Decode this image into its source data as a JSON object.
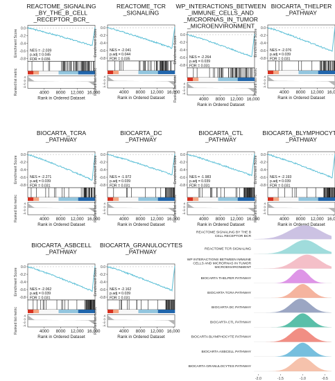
{
  "figure": {
    "gsea_axes": {
      "ylabel_top": "Enrichment Score",
      "ylabel_bottom": "Ranked list metric",
      "xlabel": "Rank in Ordered Dataset",
      "xticks": [
        "4000",
        "8000",
        "12,000",
        "16,000"
      ],
      "yticks_main": [
        "0.0",
        "-0.2",
        "-0.4",
        "-0.6",
        "-0.8"
      ],
      "yticks_metric": [
        "4",
        "0",
        "-2",
        "-4"
      ]
    },
    "colors": {
      "curve": "#5bbfd6",
      "hits": "#1a1a1a",
      "heat_red": "#d7301f",
      "heat_blue": "#2166ac",
      "heat_light": "#f7f7f7",
      "metric_fill": "#b4b4b4"
    }
  },
  "chart_data": [
    {
      "type": "line",
      "title": "REACTOME_SIGNALING\n_BY_THE_B_CELL\n_RECEPTOR_BCR_",
      "nes": "NES = -2.039",
      "padj": "p.adj = 0.045",
      "fdr": "FDR = 0.036",
      "min_es": -0.52,
      "hits_start": 0.5
    },
    {
      "type": "line",
      "title": "REACTOME_TCR\n_SIGNALING",
      "nes": "NES = -2.041",
      "padj": "p.adj = 0.044",
      "fdr": "FDR = 0.035",
      "min_es": -0.6,
      "hits_start": 0.52
    },
    {
      "type": "line",
      "title": "WP_INTERACTIONS_BETWEEN\n_IMMUNE_CELLS_AND\n_MICRORNAS_IN_TUMOR\n_MICROENVIRONMENT",
      "nes": "NES = -2.264",
      "padj": "p.adj = 0.039",
      "fdr": "FDR = 0.031",
      "min_es": -0.65,
      "hits_start": 0.45
    },
    {
      "type": "line",
      "title": "BIOCARTA_THELPER\n_PATHWAY",
      "nes": "NES = -2.076",
      "padj": "p.adj = 0.039",
      "fdr": "FDR = 0.031",
      "min_es": -0.7,
      "hits_start": 0.78
    },
    {
      "type": "line",
      "title": "BIOCARTA_TCRA\n_PATHWAY",
      "nes": "NES = -2.271",
      "padj": "p.adj = 0.039",
      "fdr": "FDR = 0.031",
      "min_es": -0.75,
      "hits_start": 0.82
    },
    {
      "type": "line",
      "title": "BIOCARTA_DC\n_PATHWAY",
      "nes": "NES = -1.972",
      "padj": "p.adj = 0.039",
      "fdr": "FDR = 0.031",
      "min_es": -0.6,
      "hits_start": 0.85
    },
    {
      "type": "line",
      "title": "BIOCARTA_CTL\n_PATHWAY",
      "nes": "NES = -1.983",
      "padj": "p.adj = 0.039",
      "fdr": "FDR = 0.031",
      "min_es": -0.62,
      "hits_start": 0.84
    },
    {
      "type": "line",
      "title": "BIOCARTA_BLYMPHOCYTE\n_PATHWAY",
      "nes": "NES = -2.193",
      "padj": "p.adj = 0.039",
      "fdr": "FDR = 0.031",
      "min_es": -0.68,
      "hits_start": 0.83
    },
    {
      "type": "line",
      "title": "BIOCARTA_ASBCELL\n_PATHWAY",
      "nes": "NES = -2.062",
      "padj": "p.adj = 0.039",
      "fdr": "FDR = 0.031",
      "min_es": -0.72,
      "hits_start": 0.84
    },
    {
      "type": "line",
      "title": "BIOCARTA_GRANULOCYTES\n_PATHWAY",
      "nes": "NES = -2.162",
      "padj": "p.adj = 0.039",
      "fdr": "FDR = 0.031",
      "min_es": -0.7,
      "hits_start": 0.86
    },
    {
      "type": "area",
      "xticks": [
        "-2.0",
        "-1.5",
        "-1.0",
        "-0.5"
      ],
      "xlim": [
        -2.1,
        -0.35
      ],
      "series": [
        {
          "name": "REACTOME SIGNALING BY THE B\nCELL RECEPTOR BCR",
          "color": "#c3b7de",
          "peak": -0.95,
          "width": 0.35
        },
        {
          "name": "REACTOME TCR SIGNALING",
          "color": "#8fd6d6",
          "peak": -0.95,
          "width": 0.3
        },
        {
          "name": "WP INTERACTIONS BETWEEN IMMUNE\nCELLS AND MICRORNAS IN TUMOR\nMICROENVIRONMENT",
          "color": "#f2b4be",
          "peak": -0.9,
          "width": 0.28
        },
        {
          "name": "BIOCARTA THELPER PATHWAY",
          "color": "#d883e3",
          "peak": -1.05,
          "width": 0.18
        },
        {
          "name": "BIOCARTA TCRA PATHWAY",
          "color": "#f3a78e",
          "peak": -1.0,
          "width": 0.2
        },
        {
          "name": "BIOCARTA DC PATHWAY",
          "color": "#8a96b9",
          "peak": -1.05,
          "width": 0.22
        },
        {
          "name": "BIOCARTA CTL PATHWAY",
          "color": "#3db49a",
          "peak": -1.0,
          "width": 0.2
        },
        {
          "name": "BIOCARTA BLYMPHOCYTE PATHWAY",
          "color": "#ef7a6e",
          "peak": -1.05,
          "width": 0.22
        },
        {
          "name": "BIOCARTA ASBCELL PATHWAY",
          "color": "#5fb4d8",
          "peak": -1.0,
          "width": 0.2
        },
        {
          "name": "BIOCARTA GRANULOCYTES PATHWAY",
          "color": "#f4b79d",
          "peak": -1.0,
          "width": 0.22
        }
      ]
    }
  ]
}
